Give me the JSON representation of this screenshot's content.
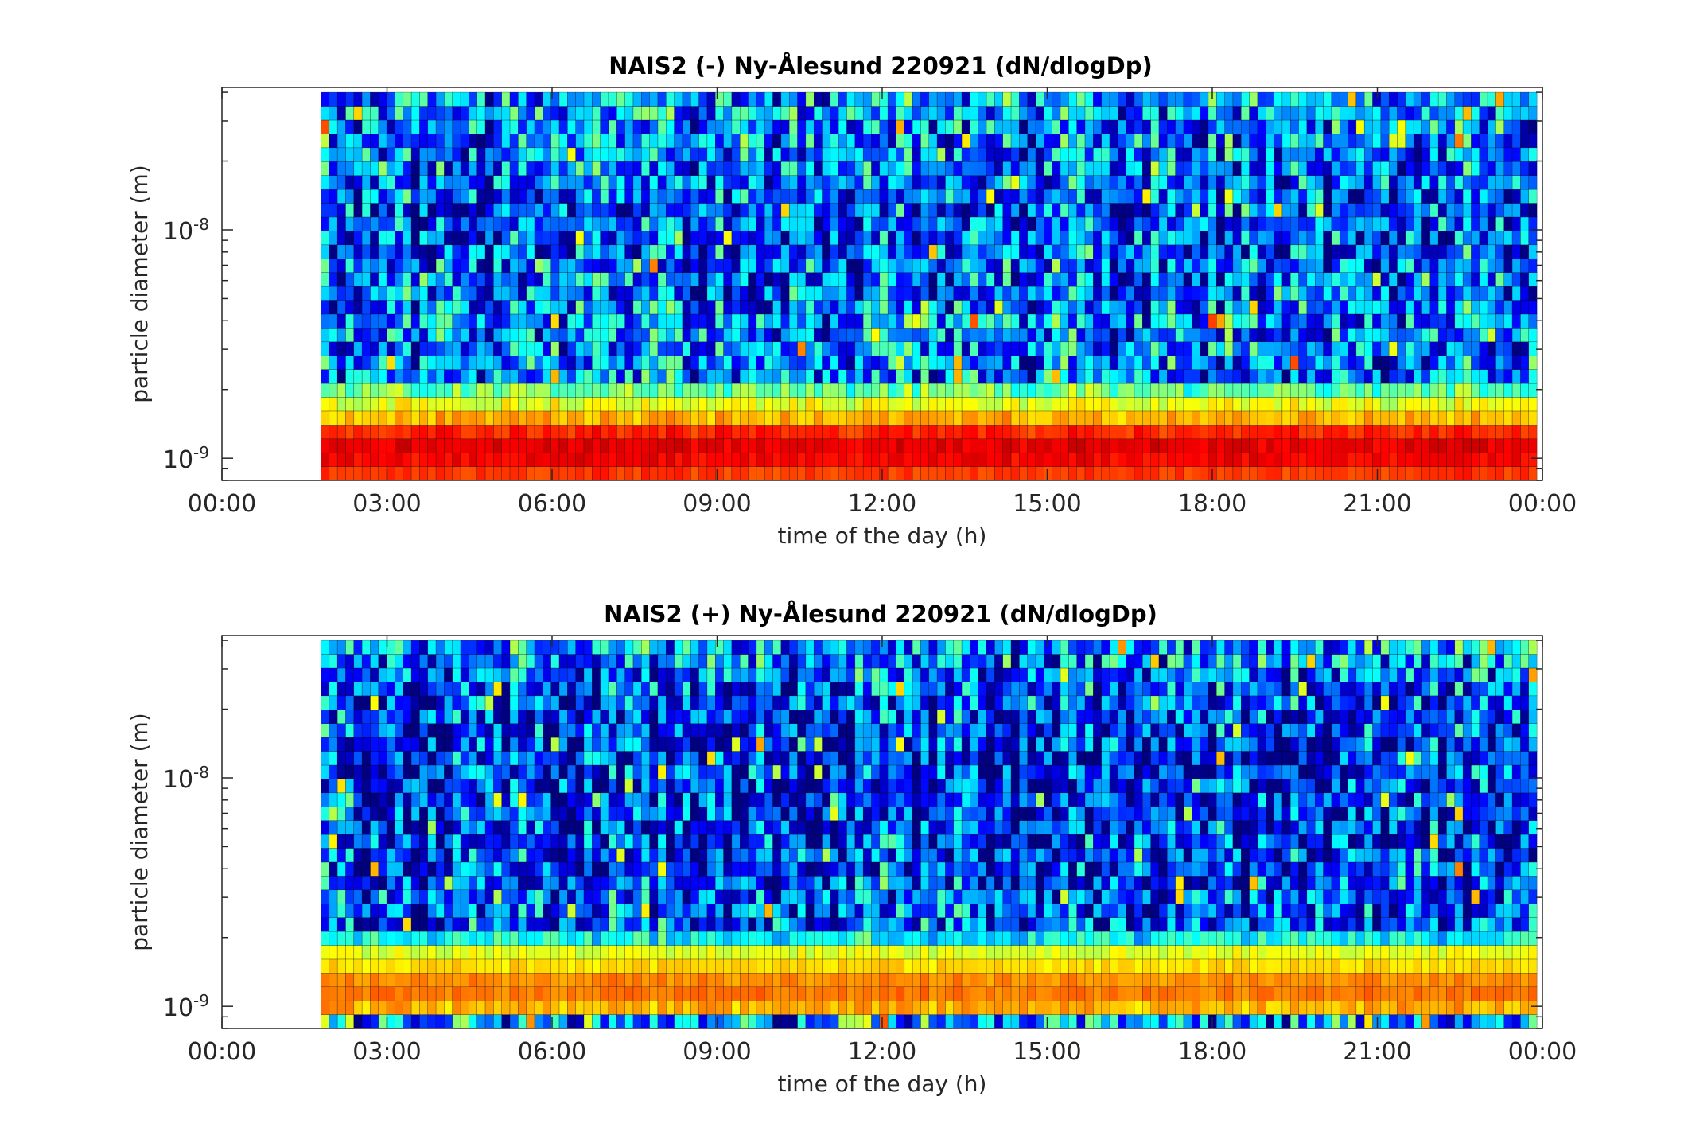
{
  "chart_data": [
    {
      "type": "heatmap",
      "title": "NAIS2 (-) Ny-Ålesund 220921 (dN/dlogDp)",
      "xlabel": "time of the day (h)",
      "ylabel": "particle diameter (m)",
      "x_ticks": [
        "00:00",
        "03:00",
        "06:00",
        "09:00",
        "12:00",
        "15:00",
        "18:00",
        "21:00",
        "00:00"
      ],
      "xlim_hours": [
        0,
        24
      ],
      "data_x_range_hours": [
        1.8,
        23.9
      ],
      "y_scale": "log",
      "ylim_m": [
        8e-10,
        4.2e-08
      ],
      "y_ticks": [
        {
          "base": "10",
          "exp": "-9"
        },
        {
          "base": "10",
          "exp": "-8"
        }
      ],
      "grid": false,
      "colormap": "jet",
      "rows_bottom_to_top": [
        {
          "level": 0.82,
          "var": 0.03
        },
        {
          "level": 0.88,
          "var": 0.03
        },
        {
          "level": 0.9,
          "var": 0.03
        },
        {
          "level": 0.84,
          "var": 0.04
        },
        {
          "level": 0.7,
          "var": 0.05
        },
        {
          "level": 0.6,
          "var": 0.06
        },
        {
          "level": 0.48,
          "var": 0.1
        },
        {
          "level": 0.25,
          "var": 0.22
        },
        {
          "level": 0.25,
          "var": 0.22
        },
        {
          "level": 0.25,
          "var": 0.22
        },
        {
          "level": 0.25,
          "var": 0.22
        },
        {
          "level": 0.26,
          "var": 0.22
        },
        {
          "level": 0.24,
          "var": 0.22
        },
        {
          "level": 0.22,
          "var": 0.22
        },
        {
          "level": 0.22,
          "var": 0.22
        },
        {
          "level": 0.21,
          "var": 0.22
        },
        {
          "level": 0.2,
          "var": 0.22
        },
        {
          "level": 0.2,
          "var": 0.22
        },
        {
          "level": 0.2,
          "var": 0.22
        },
        {
          "level": 0.2,
          "var": 0.22
        },
        {
          "level": 0.21,
          "var": 0.22
        },
        {
          "level": 0.22,
          "var": 0.22
        },
        {
          "level": 0.23,
          "var": 0.22
        },
        {
          "level": 0.24,
          "var": 0.22
        },
        {
          "level": 0.24,
          "var": 0.22
        },
        {
          "level": 0.25,
          "var": 0.22
        },
        {
          "level": 0.26,
          "var": 0.22
        },
        {
          "level": 0.28,
          "var": 0.22
        }
      ]
    },
    {
      "type": "heatmap",
      "title": "NAIS2 (+) Ny-Ålesund 220921 (dN/dlogDp)",
      "xlabel": "time of the day (h)",
      "ylabel": "particle diameter (m)",
      "x_ticks": [
        "00:00",
        "03:00",
        "06:00",
        "09:00",
        "12:00",
        "15:00",
        "18:00",
        "21:00",
        "00:00"
      ],
      "xlim_hours": [
        0,
        24
      ],
      "data_x_range_hours": [
        1.8,
        23.9
      ],
      "y_scale": "log",
      "ylim_m": [
        8e-10,
        4.2e-08
      ],
      "y_ticks": [
        {
          "base": "10",
          "exp": "-9"
        },
        {
          "base": "10",
          "exp": "-8"
        }
      ],
      "grid": false,
      "colormap": "jet",
      "rows_bottom_to_top": [
        {
          "level": 0.3,
          "var": 0.25
        },
        {
          "level": 0.7,
          "var": 0.05
        },
        {
          "level": 0.76,
          "var": 0.03
        },
        {
          "level": 0.74,
          "var": 0.03
        },
        {
          "level": 0.66,
          "var": 0.03
        },
        {
          "level": 0.6,
          "var": 0.04
        },
        {
          "level": 0.38,
          "var": 0.1
        },
        {
          "level": 0.2,
          "var": 0.22
        },
        {
          "level": 0.2,
          "var": 0.22
        },
        {
          "level": 0.19,
          "var": 0.22
        },
        {
          "level": 0.18,
          "var": 0.22
        },
        {
          "level": 0.18,
          "var": 0.22
        },
        {
          "level": 0.17,
          "var": 0.22
        },
        {
          "level": 0.16,
          "var": 0.22
        },
        {
          "level": 0.16,
          "var": 0.22
        },
        {
          "level": 0.15,
          "var": 0.22
        },
        {
          "level": 0.15,
          "var": 0.22
        },
        {
          "level": 0.15,
          "var": 0.22
        },
        {
          "level": 0.15,
          "var": 0.22
        },
        {
          "level": 0.15,
          "var": 0.22
        },
        {
          "level": 0.16,
          "var": 0.22
        },
        {
          "level": 0.17,
          "var": 0.22
        },
        {
          "level": 0.18,
          "var": 0.22
        },
        {
          "level": 0.19,
          "var": 0.22
        },
        {
          "level": 0.2,
          "var": 0.22
        },
        {
          "level": 0.22,
          "var": 0.22
        },
        {
          "level": 0.25,
          "var": 0.22
        },
        {
          "level": 0.3,
          "var": 0.22
        }
      ]
    }
  ]
}
